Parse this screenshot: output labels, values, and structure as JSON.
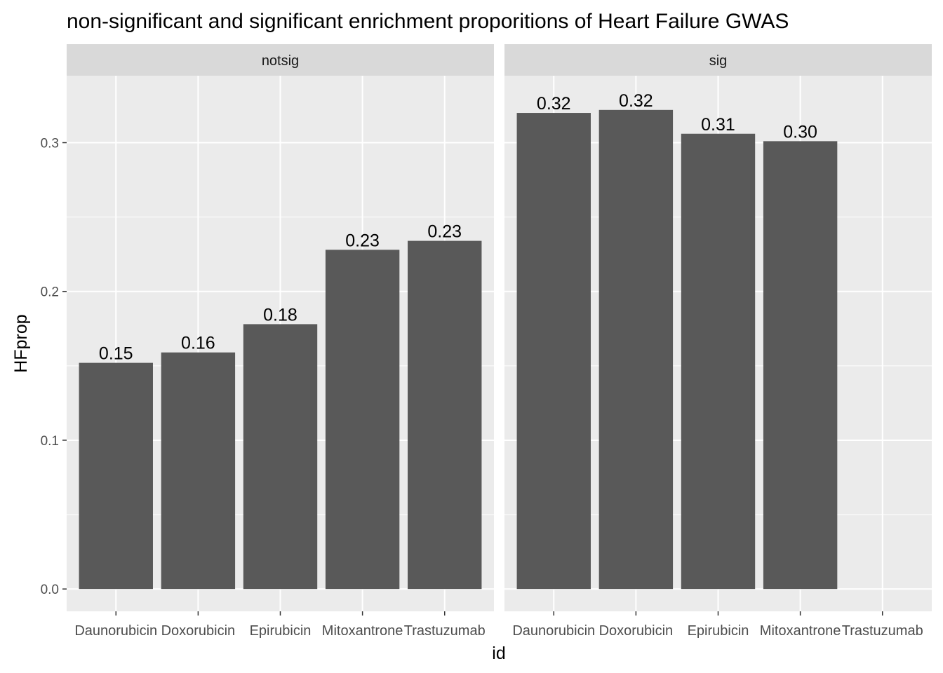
{
  "chart_data": {
    "type": "bar",
    "title": "non-significant and significant enrichment proporitions of Heart Failure GWAS",
    "xlabel": "id",
    "ylabel": "HFprop",
    "categories": [
      "Daunorubicin",
      "Doxorubicin",
      "Epirubicin",
      "Mitoxantrone",
      "Trastuzumab"
    ],
    "ylim": [
      -0.015,
      0.345
    ],
    "yticks": [
      0.0,
      0.1,
      0.2,
      0.3
    ],
    "ytick_labels": [
      "0.0",
      "0.1",
      "0.2",
      "0.3"
    ],
    "grid": true,
    "legend": "none",
    "bar_color": "#595959",
    "panel_bg": "#ebebeb",
    "strip_bg": "#d9d9d9",
    "facets": [
      {
        "name": "notsig",
        "values": [
          0.152,
          0.159,
          0.178,
          0.228,
          0.234
        ],
        "labels": [
          "0.15",
          "0.16",
          "0.18",
          "0.23",
          "0.23"
        ]
      },
      {
        "name": "sig",
        "values": [
          0.32,
          0.322,
          0.306,
          0.301,
          null
        ],
        "labels": [
          "0.32",
          "0.32",
          "0.31",
          "0.30",
          ""
        ]
      }
    ]
  }
}
